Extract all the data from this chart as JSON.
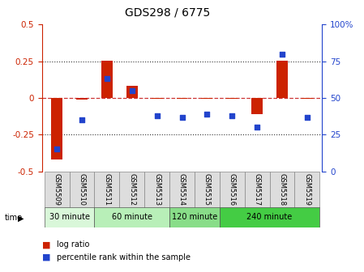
{
  "title": "GDS298 / 6775",
  "samples": [
    "GSM5509",
    "GSM5510",
    "GSM5511",
    "GSM5512",
    "GSM5513",
    "GSM5514",
    "GSM5515",
    "GSM5516",
    "GSM5517",
    "GSM5518",
    "GSM5519"
  ],
  "log_ratio": [
    -0.42,
    -0.01,
    0.255,
    0.085,
    -0.005,
    -0.005,
    -0.005,
    -0.005,
    -0.11,
    0.255,
    -0.005
  ],
  "percentile_rank": [
    15,
    35,
    63,
    55,
    38,
    37,
    39,
    38,
    30,
    80,
    37
  ],
  "group_bounds": [
    [
      0,
      2,
      "30 minute",
      "#d9f7d9"
    ],
    [
      2,
      5,
      "60 minute",
      "#b8efb8"
    ],
    [
      5,
      7,
      "120 minute",
      "#88dd88"
    ],
    [
      7,
      11,
      "240 minute",
      "#44cc44"
    ]
  ],
  "ylim_left": [
    -0.5,
    0.5
  ],
  "ylim_right": [
    0,
    100
  ],
  "yticks_left": [
    -0.5,
    -0.25,
    0.0,
    0.25,
    0.5
  ],
  "yticks_right": [
    0,
    25,
    50,
    75,
    100
  ],
  "bar_color": "#cc2200",
  "dot_color": "#2244cc",
  "hline_color": "#cc3333",
  "grid_color": "#333333",
  "bg_color": "#ffffff",
  "tick_color_left": "#cc2200",
  "tick_color_right": "#2244cc",
  "legend_log_ratio": "log ratio",
  "legend_percentile": "percentile rank within the sample",
  "title_fontsize": 10,
  "axis_fontsize": 7.5
}
